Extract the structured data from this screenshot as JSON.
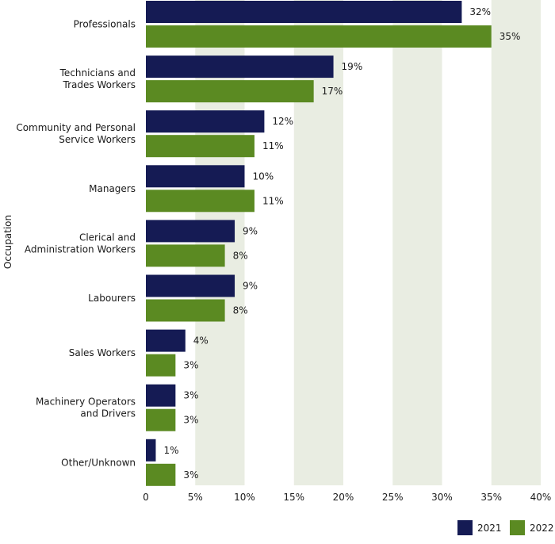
{
  "chart_data": {
    "type": "bar",
    "orientation": "horizontal",
    "ylabel": "Occupation",
    "xlim": [
      0,
      40
    ],
    "x_ticks": [
      "0",
      "5%",
      "10%",
      "15%",
      "20%",
      "25%",
      "30%",
      "35%",
      "40%"
    ],
    "grid": "alternating vertical bands",
    "legend_position": "bottom-right",
    "categories": [
      [
        "Professionals"
      ],
      [
        "Technicians and",
        "Trades Workers"
      ],
      [
        "Community and Personal",
        "Service Workers"
      ],
      [
        "Managers"
      ],
      [
        "Clerical and",
        "Administration Workers"
      ],
      [
        "Labourers"
      ],
      [
        "Sales Workers"
      ],
      [
        "Machinery Operators",
        "and Drivers"
      ],
      [
        "Other/Unknown"
      ]
    ],
    "series": [
      {
        "name": "2021",
        "color": "#151b54",
        "values": [
          32,
          19,
          12,
          10,
          9,
          9,
          4,
          3,
          1
        ],
        "labels": [
          "32%",
          "19%",
          "12%",
          "10%",
          "9%",
          "9%",
          "4%",
          "3%",
          "1%"
        ]
      },
      {
        "name": "2022",
        "color": "#5b8a22",
        "values": [
          35,
          17,
          11,
          11,
          8,
          8,
          3,
          3,
          3
        ],
        "labels": [
          "35%",
          "17%",
          "11%",
          "11%",
          "8%",
          "8%",
          "3%",
          "3%",
          "3%"
        ]
      }
    ],
    "band_color": "#e9ede2"
  }
}
